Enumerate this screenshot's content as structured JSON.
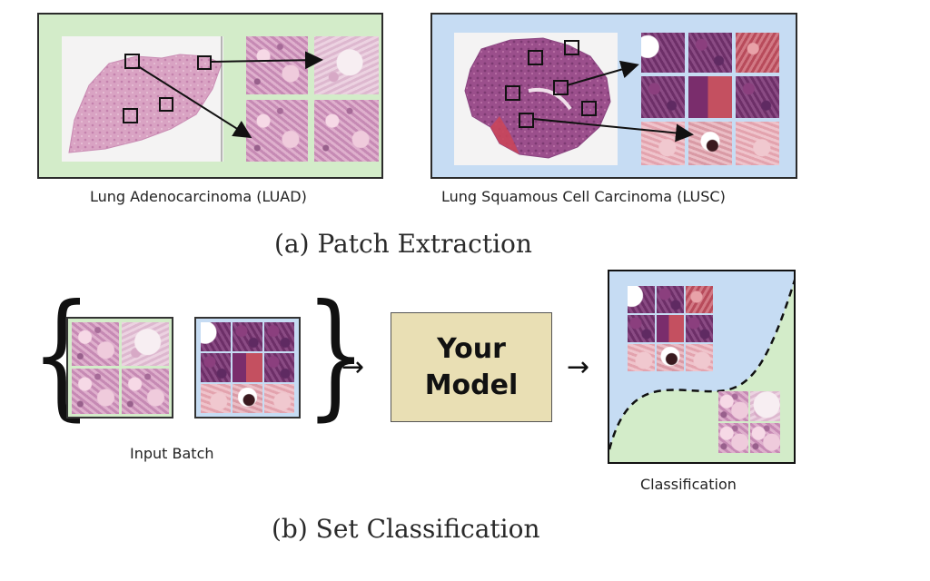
{
  "panel_a": {
    "luad_label": "Lung Adenocarcinoma (LUAD)",
    "lusc_label": "Lung Squamous Cell Carcinoma (LUSC)",
    "caption": "(a) Patch Extraction"
  },
  "panel_b": {
    "input_label": "Input Batch",
    "model_line1": "Your",
    "model_line2": "Model",
    "output_label": "Classification",
    "caption": "(b) Set Classification"
  },
  "colors": {
    "luad_background": "#d3ecc9",
    "lusc_background": "#c6dcf3",
    "model_box": "#e9dfb4"
  }
}
